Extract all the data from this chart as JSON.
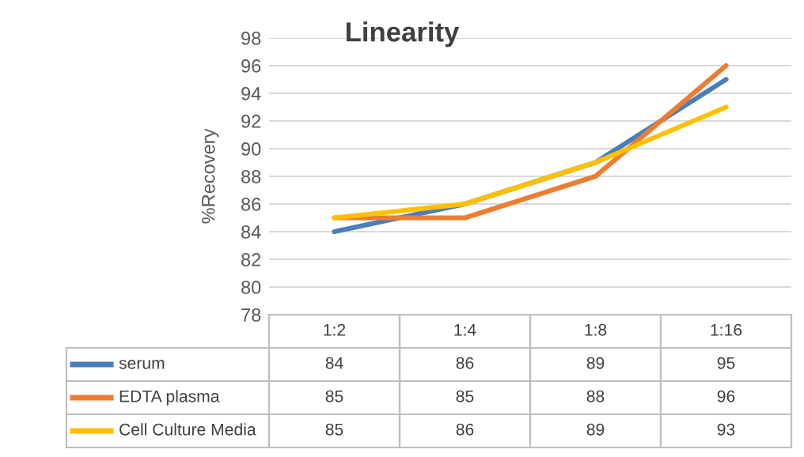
{
  "chart_data": {
    "type": "line",
    "title": "Linearity",
    "ylabel": "%Recovery",
    "categories": [
      "1:2",
      "1:4",
      "1:8",
      "1:16"
    ],
    "series": [
      {
        "name": "serum",
        "color": "#4a7ebb",
        "values": [
          84,
          86,
          89,
          95
        ]
      },
      {
        "name": "EDTA plasma",
        "color": "#ed7d31",
        "values": [
          85,
          85,
          88,
          96
        ]
      },
      {
        "name": "Cell Culture Media",
        "color": "#ffc000",
        "values": [
          85,
          86,
          89,
          93
        ]
      }
    ],
    "ylim": [
      78,
      98
    ],
    "yticks": [
      78,
      80,
      82,
      84,
      86,
      88,
      90,
      92,
      94,
      96,
      98
    ],
    "grid": "y",
    "legend": "bottom",
    "data_labels": true,
    "marker": "none",
    "line_style": "solid"
  }
}
